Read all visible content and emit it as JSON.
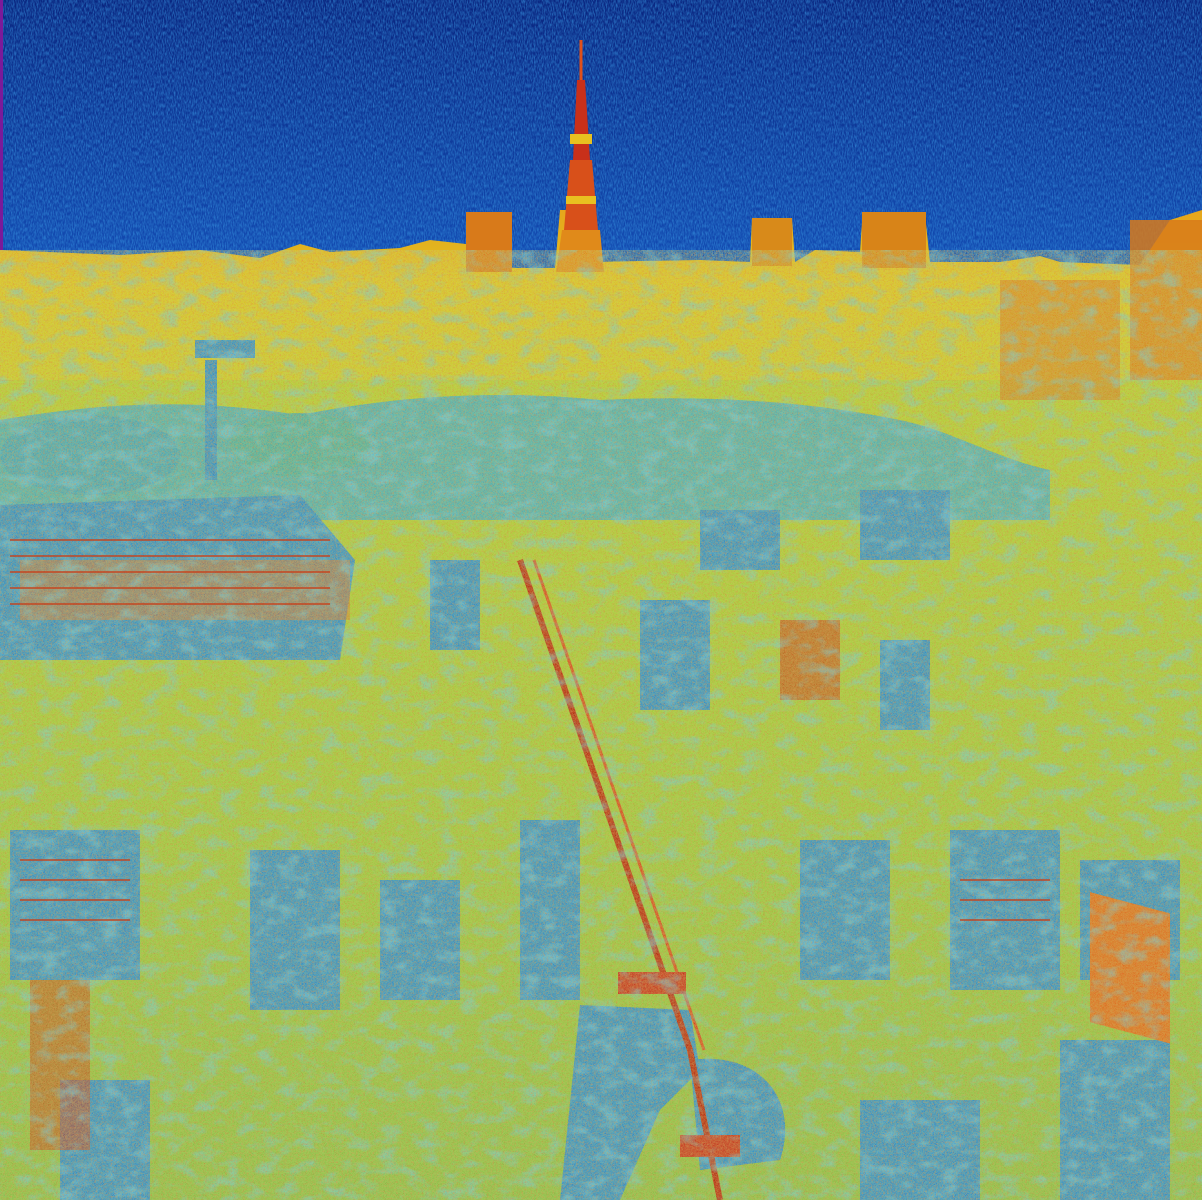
{
  "image": {
    "kind": "false-color aerial city skyline photograph",
    "palette": {
      "deep_blue": "#0b2a8f",
      "blue": "#1a5fc8",
      "cyan_blue": "#2a8ad6",
      "teal": "#3aa0b8",
      "green": "#8ec43a",
      "yellow": "#e0c81e",
      "orange": "#e08a1a",
      "red": "#c8281a",
      "dark_red": "#8a1408"
    },
    "regions": [
      "sky",
      "communication-tower",
      "distant-skyline",
      "park-trees",
      "dense-city-blocks",
      "rail-line",
      "foreground-buildings"
    ]
  }
}
